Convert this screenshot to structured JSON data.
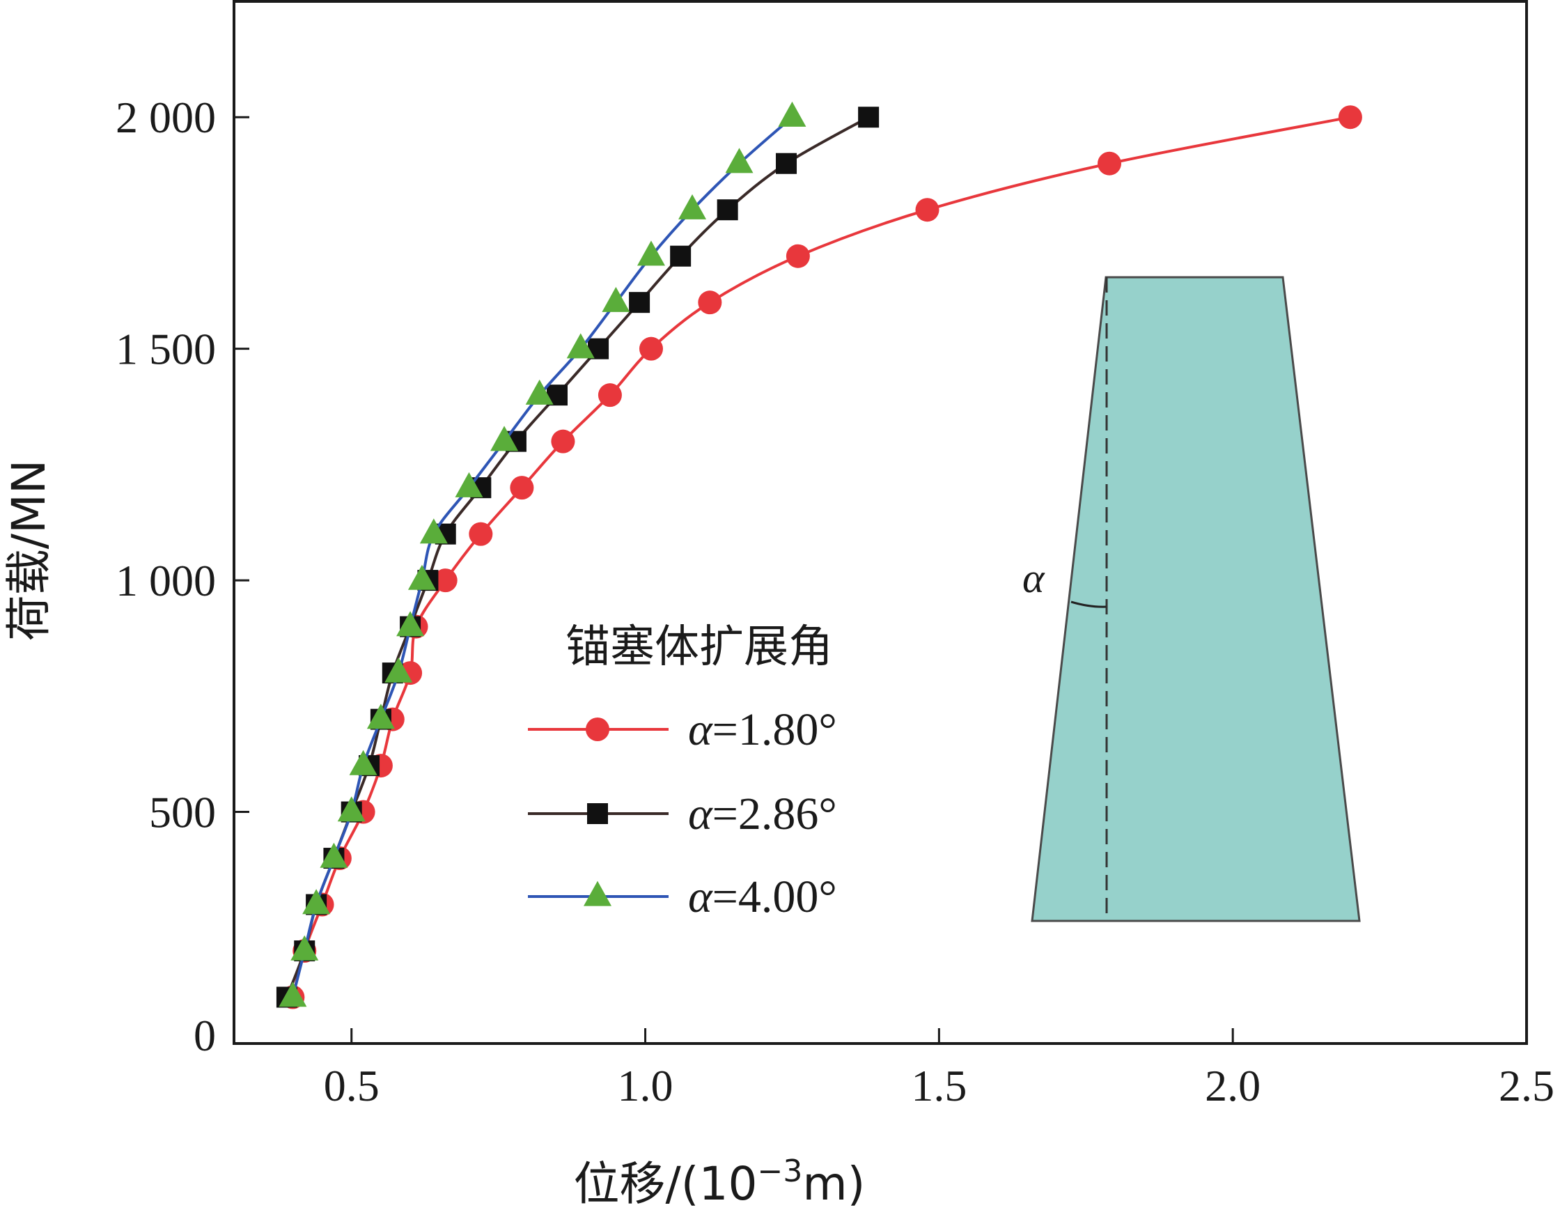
{
  "chart_data": {
    "type": "line",
    "xlabel_parts": {
      "prefix": "位移/(10",
      "sup": "−3",
      "suffix": "m)"
    },
    "ylabel": "荷载/MN",
    "xlim": [
      0.3,
      2.5
    ],
    "ylim": [
      0,
      2250
    ],
    "x_ticks": [
      0.5,
      1.0,
      1.5,
      2.0,
      2.5
    ],
    "x_tick_labels": [
      "0.5",
      "1.0",
      "1.5",
      "2.0",
      "2.5"
    ],
    "y_ticks": [
      0,
      500,
      1000,
      1500,
      2000
    ],
    "y_tick_labels": [
      "0",
      "500",
      "1 000",
      "1 500",
      "2 000"
    ],
    "legend": {
      "title": "锚塞体扩展角",
      "placement": "center"
    },
    "series": [
      {
        "name": "α=1.80°",
        "name_parts": {
          "symbol": "α",
          "rest": "=1.80°"
        },
        "marker": "circle",
        "line_color": "#e8373c",
        "marker_color": "#e8373c",
        "x": [
          0.4,
          0.42,
          0.45,
          0.48,
          0.52,
          0.55,
          0.57,
          0.6,
          0.61,
          0.66,
          0.72,
          0.79,
          0.86,
          0.94,
          1.01,
          1.11,
          1.26,
          1.48,
          1.79,
          2.2
        ],
        "y": [
          100,
          200,
          300,
          400,
          500,
          600,
          700,
          800,
          900,
          1000,
          1100,
          1200,
          1300,
          1400,
          1500,
          1600,
          1700,
          1800,
          1900,
          2000
        ]
      },
      {
        "name": "α=2.86°",
        "name_parts": {
          "symbol": "α",
          "rest": "=2.86°"
        },
        "marker": "square",
        "line_color": "#3a2a28",
        "marker_color": "#111111",
        "x": [
          0.39,
          0.42,
          0.44,
          0.47,
          0.5,
          0.53,
          0.55,
          0.57,
          0.6,
          0.63,
          0.66,
          0.72,
          0.78,
          0.85,
          0.92,
          0.99,
          1.06,
          1.14,
          1.24,
          1.38
        ],
        "y": [
          100,
          200,
          300,
          400,
          500,
          600,
          700,
          800,
          900,
          1000,
          1100,
          1200,
          1300,
          1400,
          1500,
          1600,
          1700,
          1800,
          1900,
          2000
        ]
      },
      {
        "name": "α=4.00°",
        "name_parts": {
          "symbol": "α",
          "rest": "=4.00°"
        },
        "marker": "triangle",
        "line_color": "#2e55b5",
        "marker_color": "#5aad3a",
        "x": [
          0.4,
          0.42,
          0.44,
          0.47,
          0.5,
          0.52,
          0.55,
          0.58,
          0.6,
          0.62,
          0.64,
          0.7,
          0.76,
          0.82,
          0.89,
          0.95,
          1.01,
          1.08,
          1.16,
          1.25
        ],
        "y": [
          100,
          200,
          300,
          400,
          500,
          600,
          700,
          800,
          900,
          1000,
          1100,
          1200,
          1300,
          1400,
          1500,
          1600,
          1700,
          1800,
          1900,
          2000
        ]
      }
    ],
    "inset": {
      "shape": "trapezoid",
      "fill_color": "#96d1cb",
      "edge_color": "#4a4a4a",
      "angle_label": "α"
    },
    "grid": false
  }
}
